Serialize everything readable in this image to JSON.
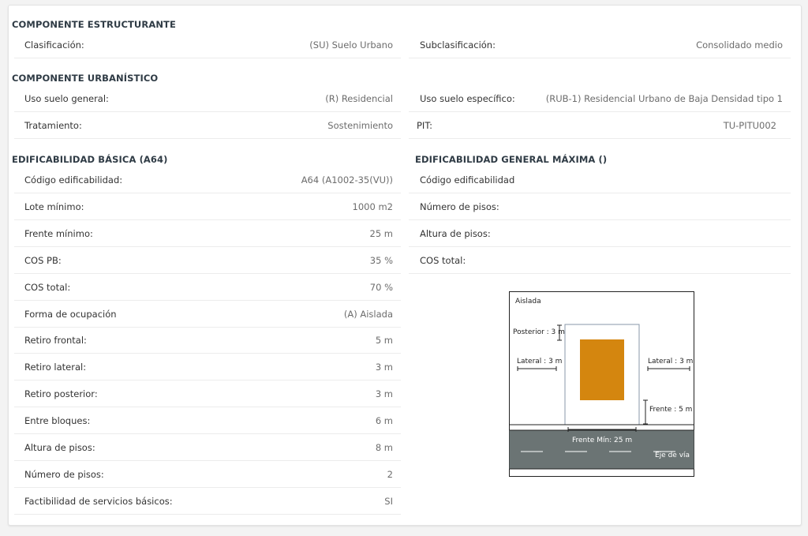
{
  "componente_estructurante": {
    "title": "COMPONENTE ESTRUCTURANTE",
    "clasificacion": {
      "label": "Clasificación:",
      "value": "(SU) Suelo Urbano"
    },
    "subclasificacion": {
      "label": "Subclasificación:",
      "value": "Consolidado medio"
    }
  },
  "componente_urbanistico": {
    "title": "COMPONENTE URBANÍSTICO",
    "uso_suelo_general": {
      "label": "Uso suelo general:",
      "value": "(R) Residencial"
    },
    "uso_suelo_especifico": {
      "label": "Uso suelo específico:",
      "value": "(RUB-1) Residencial Urbano de Baja Densidad tipo 1"
    },
    "tratamiento": {
      "label": "Tratamiento:",
      "value": "Sostenimiento"
    },
    "pit": {
      "label": "PIT:",
      "value": "TU-PITU002"
    }
  },
  "edificabilidad_basica": {
    "title": "EDIFICABILIDAD BÁSICA (A64)",
    "rows": [
      {
        "label": "Código edificabilidad:",
        "value": "A64 (A1002-35(VU))"
      },
      {
        "label": "Lote mínimo:",
        "value": "1000 m2"
      },
      {
        "label": "Frente mínimo:",
        "value": "25 m"
      },
      {
        "label": "COS PB:",
        "value": "35 %"
      },
      {
        "label": "COS total:",
        "value": "70 %"
      },
      {
        "label": "Forma de ocupación",
        "value": "(A) Aislada"
      },
      {
        "label": "Retiro frontal:",
        "value": "5 m"
      },
      {
        "label": "Retiro lateral:",
        "value": "3 m"
      },
      {
        "label": "Retiro posterior:",
        "value": "3 m"
      },
      {
        "label": "Entre bloques:",
        "value": "6 m"
      },
      {
        "label": "Altura de pisos:",
        "value": "8 m"
      },
      {
        "label": "Número de pisos:",
        "value": "2"
      },
      {
        "label": "Factibilidad de servicios básicos:",
        "value": "SI"
      }
    ]
  },
  "edificabilidad_general": {
    "title": "EDIFICABILIDAD GENERAL MÁXIMA ()",
    "rows": [
      {
        "label": "Código edificabilidad",
        "value": ""
      },
      {
        "label": "Número de pisos:",
        "value": ""
      },
      {
        "label": "Altura de pisos:",
        "value": ""
      },
      {
        "label": "COS total:",
        "value": ""
      }
    ]
  },
  "diagram": {
    "title": "Aislada",
    "posterior": "Posterior : 3 m",
    "lateral_left": "Lateral : 3 m",
    "lateral_right": "Lateral : 3 m",
    "frente": "Frente : 5 m",
    "frente_min": "Frente Mín: 25 m",
    "eje_via": "Eje de vía",
    "colors": {
      "building": "#d4860f",
      "road": "#6b7474"
    }
  }
}
